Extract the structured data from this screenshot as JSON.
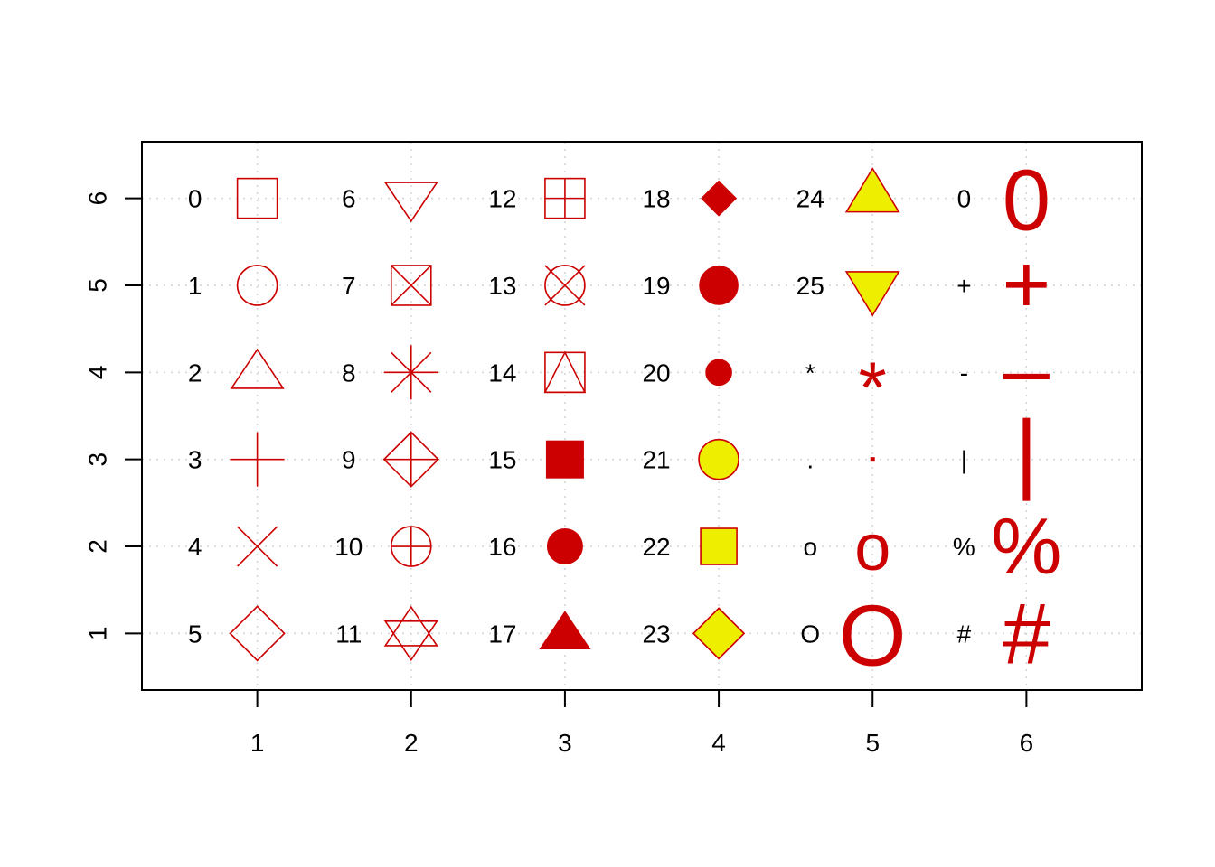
{
  "chart_data": {
    "type": "scatter",
    "title": "",
    "xlabel": "",
    "ylabel": "",
    "xlim": [
      0.25,
      6.75
    ],
    "ylim": [
      0.35,
      6.65
    ],
    "x_ticks": [
      "1",
      "2",
      "3",
      "4",
      "5",
      "6"
    ],
    "y_ticks": [
      "1",
      "2",
      "3",
      "4",
      "5",
      "6"
    ],
    "grid": true,
    "colors": {
      "stroke": "#cc0000",
      "fill_red": "#cc0000",
      "fill_yellow": "#eeee00",
      "grid": "#d3d3d3",
      "axis": "#000000"
    },
    "points": [
      {
        "x": 1,
        "y": 6,
        "label": "0",
        "pch": "0"
      },
      {
        "x": 1,
        "y": 5,
        "label": "1",
        "pch": "1"
      },
      {
        "x": 1,
        "y": 4,
        "label": "2",
        "pch": "2"
      },
      {
        "x": 1,
        "y": 3,
        "label": "3",
        "pch": "3"
      },
      {
        "x": 1,
        "y": 2,
        "label": "4",
        "pch": "4"
      },
      {
        "x": 1,
        "y": 1,
        "label": "5",
        "pch": "5"
      },
      {
        "x": 2,
        "y": 6,
        "label": "6",
        "pch": "6"
      },
      {
        "x": 2,
        "y": 5,
        "label": "7",
        "pch": "7"
      },
      {
        "x": 2,
        "y": 4,
        "label": "8",
        "pch": "8"
      },
      {
        "x": 2,
        "y": 3,
        "label": "9",
        "pch": "9"
      },
      {
        "x": 2,
        "y": 2,
        "label": "10",
        "pch": "10"
      },
      {
        "x": 2,
        "y": 1,
        "label": "11",
        "pch": "11"
      },
      {
        "x": 3,
        "y": 6,
        "label": "12",
        "pch": "12"
      },
      {
        "x": 3,
        "y": 5,
        "label": "13",
        "pch": "13"
      },
      {
        "x": 3,
        "y": 4,
        "label": "14",
        "pch": "14"
      },
      {
        "x": 3,
        "y": 3,
        "label": "15",
        "pch": "15"
      },
      {
        "x": 3,
        "y": 2,
        "label": "16",
        "pch": "16"
      },
      {
        "x": 3,
        "y": 1,
        "label": "17",
        "pch": "17"
      },
      {
        "x": 4,
        "y": 6,
        "label": "18",
        "pch": "18"
      },
      {
        "x": 4,
        "y": 5,
        "label": "19",
        "pch": "19"
      },
      {
        "x": 4,
        "y": 4,
        "label": "20",
        "pch": "20"
      },
      {
        "x": 4,
        "y": 3,
        "label": "21",
        "pch": "21"
      },
      {
        "x": 4,
        "y": 2,
        "label": "22",
        "pch": "22"
      },
      {
        "x": 4,
        "y": 1,
        "label": "23",
        "pch": "23"
      },
      {
        "x": 5,
        "y": 6,
        "label": "24",
        "pch": "24"
      },
      {
        "x": 5,
        "y": 5,
        "label": "25",
        "pch": "25"
      },
      {
        "x": 5,
        "y": 4,
        "label": "*",
        "pch": "*"
      },
      {
        "x": 5,
        "y": 3,
        "label": ".",
        "pch": "."
      },
      {
        "x": 5,
        "y": 2,
        "label": "o",
        "pch": "o"
      },
      {
        "x": 5,
        "y": 1,
        "label": "O",
        "pch": "O"
      },
      {
        "x": 6,
        "y": 6,
        "label": "0",
        "pch": "0"
      },
      {
        "x": 6,
        "y": 5,
        "label": "+",
        "pch": "+"
      },
      {
        "x": 6,
        "y": 4,
        "label": "-",
        "pch": "-"
      },
      {
        "x": 6,
        "y": 3,
        "label": "|",
        "pch": "|"
      },
      {
        "x": 6,
        "y": 2,
        "label": "%",
        "pch": "%"
      },
      {
        "x": 6,
        "y": 1,
        "label": "#",
        "pch": "#"
      }
    ]
  }
}
